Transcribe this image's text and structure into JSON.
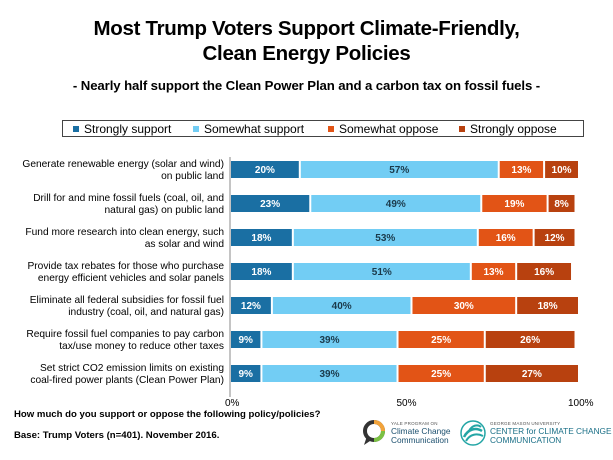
{
  "chart_data": {
    "type": "bar",
    "orientation": "horizontal-stacked",
    "title": "Most Trump Voters Support Climate-Friendly, Clean Energy Policies",
    "title_line1": "Most Trump Voters Support Climate-Friendly,",
    "title_line2": "Clean Energy Policies",
    "subtitle": "- Nearly half support the Clean Power Plan and a carbon tax on fossil fuels -",
    "categories": [
      [
        "Generate renewable energy (solar and wind)",
        "on public land"
      ],
      [
        "Drill for and mine fossil fuels (coal, oil, and",
        "natural gas) on public land"
      ],
      [
        "Fund more research into clean energy, such",
        "as solar and wind"
      ],
      [
        "Provide tax rebates for those who purchase",
        "energy efficient vehicles and solar panels"
      ],
      [
        "Eliminate all federal subsidies for fossil fuel",
        "industry (coal, oil, and natural gas)"
      ],
      [
        "Require fossil fuel companies to pay carbon",
        "tax/use money to reduce other taxes"
      ],
      [
        "Set strict CO2 emission limits on existing",
        "coal-fired power plants (Clean Power Plan)"
      ]
    ],
    "series": [
      {
        "name": "Strongly support",
        "color": "#1a6fa3",
        "values": [
          20,
          23,
          18,
          18,
          12,
          9,
          9
        ]
      },
      {
        "name": "Somewhat support",
        "color": "#72cdf4",
        "values": [
          57,
          49,
          53,
          51,
          40,
          39,
          39
        ]
      },
      {
        "name": "Somewhat oppose",
        "color": "#e25416",
        "values": [
          13,
          19,
          16,
          13,
          30,
          25,
          25
        ]
      },
      {
        "name": "Strongly oppose",
        "color": "#b8410f",
        "values": [
          10,
          8,
          12,
          16,
          18,
          26,
          27
        ]
      }
    ],
    "xlim": [
      0,
      100
    ],
    "xticks": [
      0,
      50,
      100
    ],
    "xtick_labels": [
      "0%",
      "50%",
      "100%"
    ],
    "legend_position": "top",
    "grid": false,
    "value_suffix": "%"
  },
  "footnote": {
    "question": "How much do you support or oppose the following policy/policies?",
    "base": "Base: Trump Voters (n=401). November 2016."
  },
  "logos": {
    "yale_small": "YALE PROGRAM ON",
    "yale_line1": "Climate Change",
    "yale_line2": "Communication",
    "gmu_small": "GEORGE MASON UNIVERSITY",
    "gmu_line1": "CENTER for CLIMATE CHANGE",
    "gmu_line2": "COMMUNICATION"
  }
}
